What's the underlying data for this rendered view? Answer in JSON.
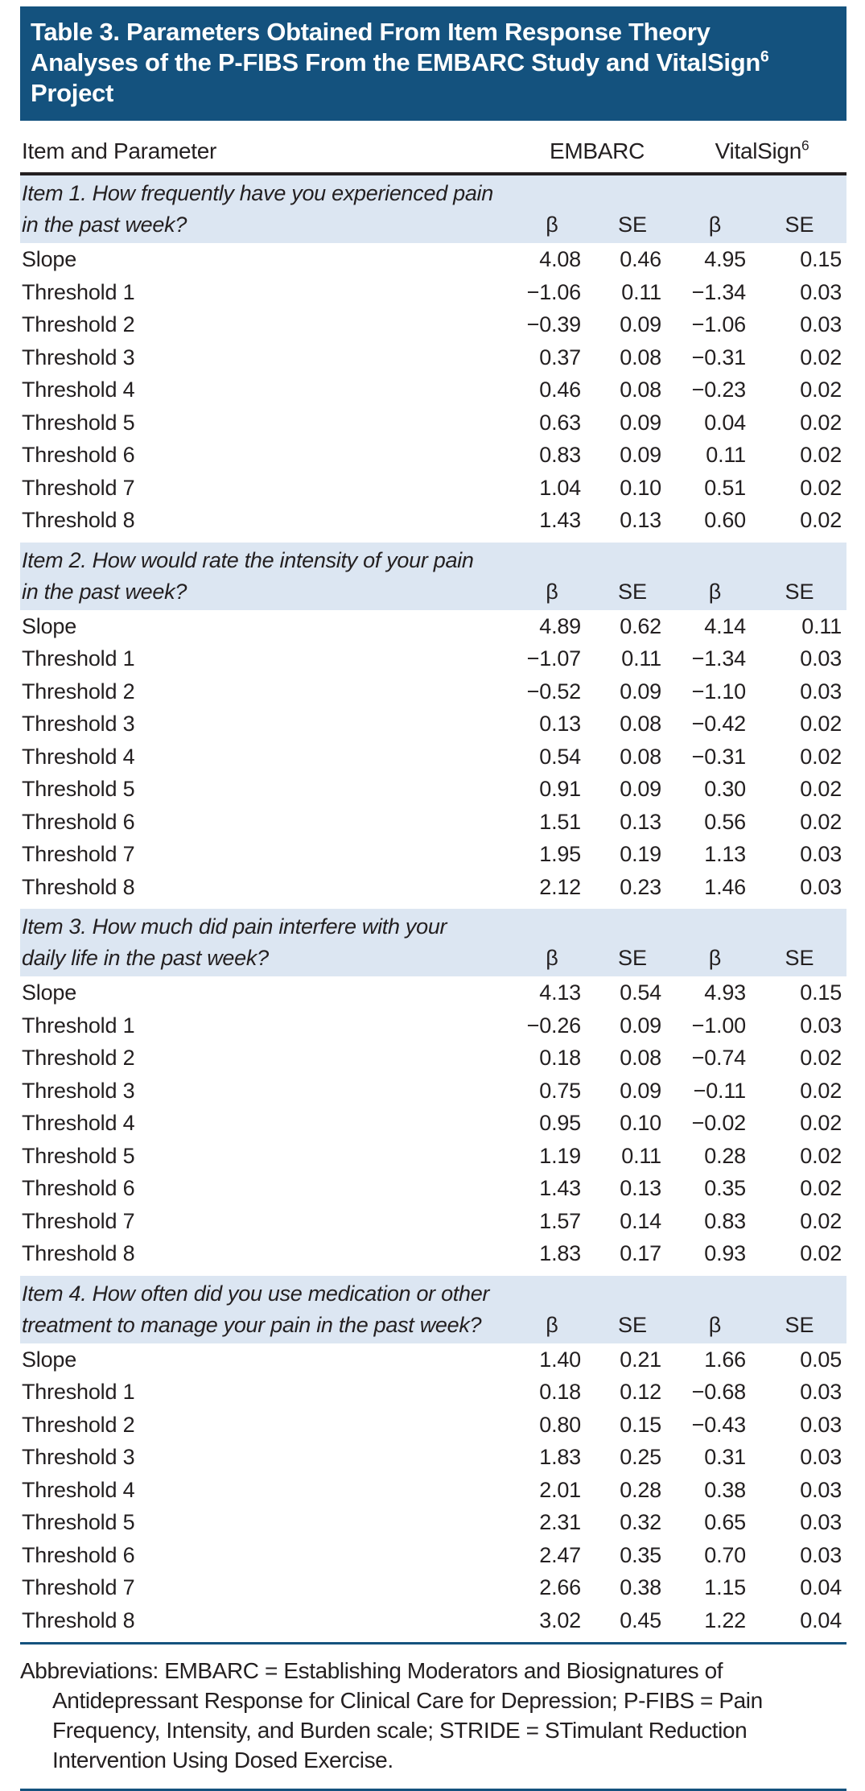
{
  "colors": {
    "title_bar_bg": "#14527E",
    "item_row_bg": "#DCE6F2",
    "rule_color": "#14527E",
    "text_color": "#231F20",
    "title_text": "#FFFFFF"
  },
  "title": {
    "line1": "Table 3. Parameters Obtained From Item Response Theory",
    "line2_pre": "Analyses of the P-FIBS From the EMBARC Study and VitalSign",
    "line2_sup": "6",
    "line3": "Project"
  },
  "table": {
    "header": {
      "item_and_parameter": "Item and Parameter",
      "embarc": "EMBARC",
      "vitalsign": "VitalSign",
      "vitalsign_sup": "6"
    },
    "sub_beta": "β",
    "sub_se": "SE",
    "items": [
      {
        "question_line1": "Item 1. How frequently have you experienced pain",
        "question_line2": "in the past week?",
        "rows": [
          {
            "label": "Slope",
            "values": [
              "4.08",
              "0.46",
              "4.95",
              "0.15"
            ]
          },
          {
            "label": "Threshold 1",
            "values": [
              "−1.06",
              "0.11",
              "−1.34",
              "0.03"
            ]
          },
          {
            "label": "Threshold 2",
            "values": [
              "−0.39",
              "0.09",
              "−1.06",
              "0.03"
            ]
          },
          {
            "label": "Threshold 3",
            "values": [
              "0.37",
              "0.08",
              "−0.31",
              "0.02"
            ]
          },
          {
            "label": "Threshold 4",
            "values": [
              "0.46",
              "0.08",
              "−0.23",
              "0.02"
            ]
          },
          {
            "label": "Threshold 5",
            "values": [
              "0.63",
              "0.09",
              "0.04",
              "0.02"
            ]
          },
          {
            "label": "Threshold 6",
            "values": [
              "0.83",
              "0.09",
              "0.11",
              "0.02"
            ]
          },
          {
            "label": "Threshold 7",
            "values": [
              "1.04",
              "0.10",
              "0.51",
              "0.02"
            ]
          },
          {
            "label": "Threshold 8",
            "values": [
              "1.43",
              "0.13",
              "0.60",
              "0.02"
            ]
          }
        ]
      },
      {
        "question_line1": "Item 2. How would rate the intensity of your pain",
        "question_line2": "in the past week?",
        "rows": [
          {
            "label": "Slope",
            "values": [
              "4.89",
              "0.62",
              "4.14",
              "0.11"
            ]
          },
          {
            "label": "Threshold 1",
            "values": [
              "−1.07",
              "0.11",
              "−1.34",
              "0.03"
            ]
          },
          {
            "label": "Threshold 2",
            "values": [
              "−0.52",
              "0.09",
              "−1.10",
              "0.03"
            ]
          },
          {
            "label": "Threshold 3",
            "values": [
              "0.13",
              "0.08",
              "−0.42",
              "0.02"
            ]
          },
          {
            "label": "Threshold 4",
            "values": [
              "0.54",
              "0.08",
              "−0.31",
              "0.02"
            ]
          },
          {
            "label": "Threshold 5",
            "values": [
              "0.91",
              "0.09",
              "0.30",
              "0.02"
            ]
          },
          {
            "label": "Threshold 6",
            "values": [
              "1.51",
              "0.13",
              "0.56",
              "0.02"
            ]
          },
          {
            "label": "Threshold 7",
            "values": [
              "1.95",
              "0.19",
              "1.13",
              "0.03"
            ]
          },
          {
            "label": "Threshold 8",
            "values": [
              "2.12",
              "0.23",
              "1.46",
              "0.03"
            ]
          }
        ]
      },
      {
        "question_line1": "Item 3. How much did pain interfere with your",
        "question_line2": "daily life in the past week?",
        "rows": [
          {
            "label": "Slope",
            "values": [
              "4.13",
              "0.54",
              "4.93",
              "0.15"
            ]
          },
          {
            "label": "Threshold 1",
            "values": [
              "−0.26",
              "0.09",
              "−1.00",
              "0.03"
            ]
          },
          {
            "label": "Threshold 2",
            "values": [
              "0.18",
              "0.08",
              "−0.74",
              "0.02"
            ]
          },
          {
            "label": "Threshold 3",
            "values": [
              "0.75",
              "0.09",
              "−0.11",
              "0.02"
            ]
          },
          {
            "label": "Threshold 4",
            "values": [
              "0.95",
              "0.10",
              "−0.02",
              "0.02"
            ]
          },
          {
            "label": "Threshold 5",
            "values": [
              "1.19",
              "0.11",
              "0.28",
              "0.02"
            ]
          },
          {
            "label": "Threshold 6",
            "values": [
              "1.43",
              "0.13",
              "0.35",
              "0.02"
            ]
          },
          {
            "label": "Threshold 7",
            "values": [
              "1.57",
              "0.14",
              "0.83",
              "0.02"
            ]
          },
          {
            "label": "Threshold 8",
            "values": [
              "1.83",
              "0.17",
              "0.93",
              "0.02"
            ]
          }
        ]
      },
      {
        "question_line1": "Item 4. How often did you use medication or other",
        "question_line2": "treatment to manage your pain in the past week?",
        "rows": [
          {
            "label": "Slope",
            "values": [
              "1.40",
              "0.21",
              "1.66",
              "0.05"
            ]
          },
          {
            "label": "Threshold 1",
            "values": [
              "0.18",
              "0.12",
              "−0.68",
              "0.03"
            ]
          },
          {
            "label": "Threshold 2",
            "values": [
              "0.80",
              "0.15",
              "−0.43",
              "0.03"
            ]
          },
          {
            "label": "Threshold 3",
            "values": [
              "1.83",
              "0.25",
              "0.31",
              "0.03"
            ]
          },
          {
            "label": "Threshold 4",
            "values": [
              "2.01",
              "0.28",
              "0.38",
              "0.03"
            ]
          },
          {
            "label": "Threshold 5",
            "values": [
              "2.31",
              "0.32",
              "0.65",
              "0.03"
            ]
          },
          {
            "label": "Threshold 6",
            "values": [
              "2.47",
              "0.35",
              "0.70",
              "0.03"
            ]
          },
          {
            "label": "Threshold 7",
            "values": [
              "2.66",
              "0.38",
              "1.15",
              "0.04"
            ]
          },
          {
            "label": "Threshold 8",
            "values": [
              "3.02",
              "0.45",
              "1.22",
              "0.04"
            ]
          }
        ]
      }
    ]
  },
  "footnote": {
    "line1": "Abbreviations: EMBARC = Establishing Moderators and Biosignatures of",
    "line2": "Antidepressant Response for Clinical Care for Depression; P-FIBS = Pain",
    "line3": "Frequency, Intensity, and Burden scale; STRIDE = STimulant Reduction",
    "line4": "Intervention Using Dosed Exercise."
  }
}
